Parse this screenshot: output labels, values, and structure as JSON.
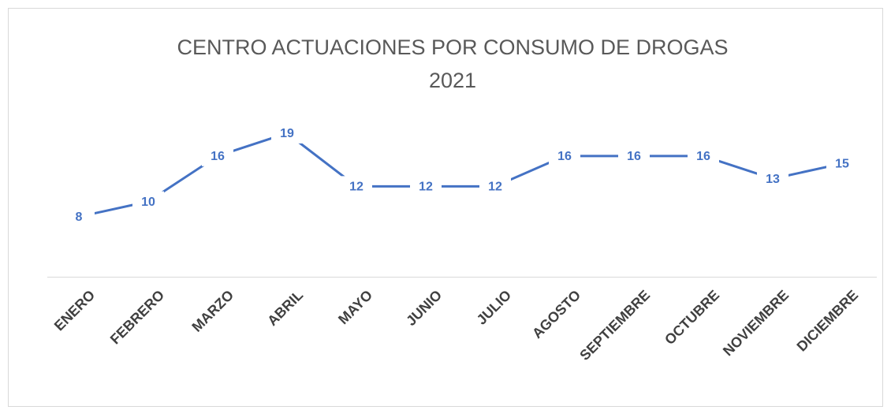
{
  "chart_data": {
    "type": "line",
    "title": [
      "CENTRO ACTUACIONES POR CONSUMO DE DROGAS",
      "2021"
    ],
    "categories": [
      "ENERO",
      "FEBRERO",
      "MARZO",
      "ABRIL",
      "MAYO",
      "JUNIO",
      "JULIO",
      "AGOSTO",
      "SEPTIEMBRE",
      "OCTUBRE",
      "NOVIEMBRE",
      "DICIEMBRE"
    ],
    "series": [
      {
        "color": "#4472c4",
        "values": [
          8,
          10,
          16,
          19,
          12,
          12,
          12,
          16,
          16,
          16,
          13,
          15
        ]
      }
    ],
    "ylim": [
      0,
      22
    ]
  }
}
